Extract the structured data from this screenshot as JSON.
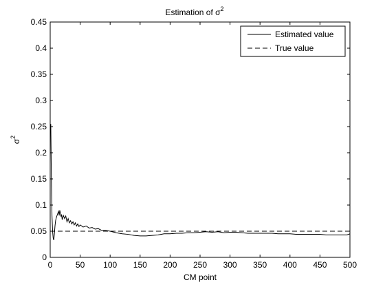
{
  "chart_data": {
    "type": "line",
    "title": "Estimation of σ",
    "title_superscript": "2",
    "xlabel": "CM point",
    "ylabel": "σ",
    "ylabel_superscript": "2",
    "xlim": [
      0,
      500
    ],
    "ylim": [
      0,
      0.45
    ],
    "xticks": [
      0,
      50,
      100,
      150,
      200,
      250,
      300,
      350,
      400,
      450,
      500
    ],
    "xtick_labels": [
      "0",
      "50",
      "100",
      "150",
      "200",
      "250",
      "300",
      "350",
      "400",
      "450",
      "500"
    ],
    "yticks": [
      0,
      0.05,
      0.1,
      0.15,
      0.2,
      0.25,
      0.3,
      0.35,
      0.4,
      0.45
    ],
    "ytick_labels": [
      "0",
      "0.05",
      "0.1",
      "0.15",
      "0.2",
      "0.25",
      "0.3",
      "0.35",
      "0.4",
      "0.45"
    ],
    "grid": false,
    "legend": "top-right",
    "series": [
      {
        "name": "Estimated value",
        "style": "solid",
        "color": "#000000",
        "x": [
          1,
          2,
          3,
          4,
          5,
          6,
          7,
          8,
          9,
          10,
          12,
          14,
          15,
          16,
          17,
          18,
          19,
          20,
          22,
          24,
          26,
          28,
          30,
          32,
          34,
          36,
          38,
          40,
          42,
          44,
          46,
          48,
          50,
          55,
          60,
          65,
          70,
          75,
          80,
          85,
          90,
          95,
          100,
          110,
          120,
          130,
          140,
          150,
          160,
          170,
          180,
          190,
          200,
          210,
          220,
          230,
          240,
          250,
          260,
          270,
          280,
          290,
          300,
          310,
          320,
          330,
          340,
          350,
          360,
          370,
          380,
          390,
          400,
          410,
          420,
          430,
          440,
          450,
          460,
          470,
          480,
          490,
          495,
          500
        ],
        "y": [
          0.255,
          0.15,
          0.08,
          0.05,
          0.037,
          0.033,
          0.045,
          0.06,
          0.07,
          0.075,
          0.082,
          0.088,
          0.08,
          0.09,
          0.085,
          0.078,
          0.082,
          0.072,
          0.08,
          0.074,
          0.079,
          0.068,
          0.074,
          0.066,
          0.07,
          0.064,
          0.068,
          0.062,
          0.066,
          0.06,
          0.064,
          0.059,
          0.062,
          0.058,
          0.06,
          0.056,
          0.057,
          0.054,
          0.055,
          0.052,
          0.052,
          0.051,
          0.05,
          0.047,
          0.045,
          0.044,
          0.042,
          0.041,
          0.041,
          0.042,
          0.043,
          0.045,
          0.045,
          0.046,
          0.046,
          0.047,
          0.047,
          0.048,
          0.049,
          0.048,
          0.049,
          0.047,
          0.048,
          0.048,
          0.047,
          0.046,
          0.046,
          0.046,
          0.046,
          0.046,
          0.045,
          0.045,
          0.045,
          0.044,
          0.044,
          0.044,
          0.044,
          0.044,
          0.043,
          0.043,
          0.043,
          0.043,
          0.043,
          0.045
        ]
      },
      {
        "name": "True value",
        "style": "dashed",
        "color": "#000000",
        "x": [
          0,
          500
        ],
        "y": [
          0.05,
          0.05
        ]
      }
    ]
  }
}
